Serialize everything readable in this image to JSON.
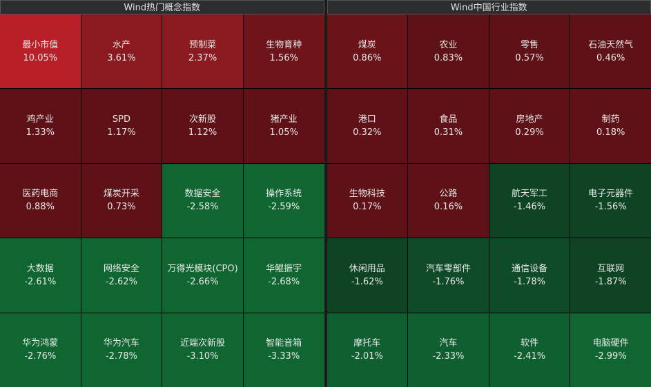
{
  "panels": [
    {
      "title": "Wind热门概念指数",
      "cells": [
        {
          "name": "最小市值",
          "change": "10.05%",
          "color": "#b81f27"
        },
        {
          "name": "水产",
          "change": "3.61%",
          "color": "#8a1a1f"
        },
        {
          "name": "预制菜",
          "change": "2.37%",
          "color": "#8a1a1f"
        },
        {
          "name": "生物育种",
          "change": "1.56%",
          "color": "#6e141a"
        },
        {
          "name": "鸡产业",
          "change": "1.33%",
          "color": "#5e1116"
        },
        {
          "name": "SPD",
          "change": "1.17%",
          "color": "#5e1116"
        },
        {
          "name": "次新股",
          "change": "1.12%",
          "color": "#5e1116"
        },
        {
          "name": "猪产业",
          "change": "1.05%",
          "color": "#5e1116"
        },
        {
          "name": "医药电商",
          "change": "0.88%",
          "color": "#5e1116"
        },
        {
          "name": "煤炭开采",
          "change": "0.73%",
          "color": "#5e1116"
        },
        {
          "name": "数据安全",
          "change": "-2.58%",
          "color": "#0f6631"
        },
        {
          "name": "操作系统",
          "change": "-2.59%",
          "color": "#0f6631"
        },
        {
          "name": "大数据",
          "change": "-2.61%",
          "color": "#0f6631"
        },
        {
          "name": "网络安全",
          "change": "-2.62%",
          "color": "#0f6631"
        },
        {
          "name": "万得光模块(CPO)",
          "change": "-2.66%",
          "color": "#0f6631"
        },
        {
          "name": "华鲲振宇",
          "change": "-2.68%",
          "color": "#0f6631"
        },
        {
          "name": "华为鸿蒙",
          "change": "-2.76%",
          "color": "#0f6631"
        },
        {
          "name": "华为汽车",
          "change": "-2.78%",
          "color": "#0f6631"
        },
        {
          "name": "近端次新股",
          "change": "-3.10%",
          "color": "#0f6631"
        },
        {
          "name": "智能音箱",
          "change": "-3.33%",
          "color": "#0f6631"
        }
      ]
    },
    {
      "title": "Wind中国行业指数",
      "cells": [
        {
          "name": "煤炭",
          "change": "0.86%",
          "color": "#6a1318"
        },
        {
          "name": "农业",
          "change": "0.83%",
          "color": "#5e1116"
        },
        {
          "name": "零售",
          "change": "0.57%",
          "color": "#5e1116"
        },
        {
          "name": "石油天然气",
          "change": "0.46%",
          "color": "#5e1116"
        },
        {
          "name": "港口",
          "change": "0.32%",
          "color": "#5e1116"
        },
        {
          "name": "食品",
          "change": "0.31%",
          "color": "#5e1116"
        },
        {
          "name": "房地产",
          "change": "0.29%",
          "color": "#5e1116"
        },
        {
          "name": "制药",
          "change": "0.18%",
          "color": "#5e1116"
        },
        {
          "name": "生物科技",
          "change": "0.17%",
          "color": "#5e1116"
        },
        {
          "name": "公路",
          "change": "0.16%",
          "color": "#5e1116"
        },
        {
          "name": "航天军工",
          "change": "-1.46%",
          "color": "#0e4424"
        },
        {
          "name": "电子元器件",
          "change": "-1.56%",
          "color": "#0e4424"
        },
        {
          "name": "休闲用品",
          "change": "-1.62%",
          "color": "#0e4424"
        },
        {
          "name": "汽车零部件",
          "change": "-1.76%",
          "color": "#0f4b28"
        },
        {
          "name": "通信设备",
          "change": "-1.78%",
          "color": "#0f4b28"
        },
        {
          "name": "互联网",
          "change": "-1.87%",
          "color": "#0e4424"
        },
        {
          "name": "摩托车",
          "change": "-2.01%",
          "color": "#0f5f30"
        },
        {
          "name": "汽车",
          "change": "-2.33%",
          "color": "#0f5f30"
        },
        {
          "name": "软件",
          "change": "-2.41%",
          "color": "#0f5f30"
        },
        {
          "name": "电脑硬件",
          "change": "-2.99%",
          "color": "#0f6631"
        }
      ]
    }
  ]
}
